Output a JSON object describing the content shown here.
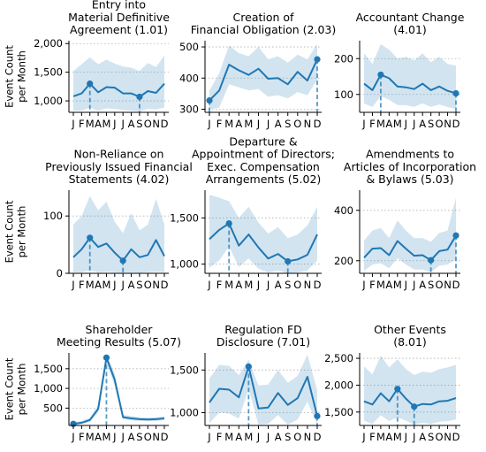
{
  "chart_data": {
    "type": "line",
    "y_axis_label": [
      "Event Count",
      "per Month"
    ],
    "x_tick_labels": [
      "J",
      "F",
      "M",
      "A",
      "M",
      "J",
      "J",
      "A",
      "S",
      "O",
      "N",
      "D"
    ],
    "line_color": "#1f77b4",
    "band_color": "#1f77b4",
    "panels": [
      {
        "title": [
          "Entry into",
          "Material Definitive",
          "Agreement (1.01)"
        ],
        "ylim": [
          800,
          2050
        ],
        "yticks": [
          1000,
          1500,
          2000
        ],
        "ytick_labels": [
          "1,000",
          "1,500",
          "2,000"
        ],
        "values": [
          1080,
          1130,
          1300,
          1150,
          1240,
          1230,
          1130,
          1130,
          1070,
          1170,
          1140,
          1300
        ],
        "band_upper": [
          1520,
          1640,
          1760,
          1640,
          1720,
          1650,
          1600,
          1580,
          1520,
          1660,
          1590,
          1790
        ],
        "band_lower": [
          830,
          830,
          880,
          830,
          870,
          860,
          840,
          830,
          820,
          860,
          850,
          880
        ],
        "highlight_max": 2,
        "highlight_min": 8
      },
      {
        "title": [
          "Creation of",
          "Financial Obligation (2.03)"
        ],
        "ylim": [
          290,
          520
        ],
        "yticks": [
          300,
          400,
          500
        ],
        "ytick_labels": [
          "300",
          "400",
          "500"
        ],
        "values": [
          328,
          360,
          443,
          425,
          410,
          430,
          398,
          400,
          380,
          420,
          392,
          460
        ],
        "band_upper": [
          360,
          415,
          505,
          480,
          470,
          500,
          460,
          470,
          450,
          475,
          460,
          510
        ],
        "band_lower": [
          300,
          305,
          380,
          370,
          360,
          365,
          340,
          345,
          335,
          355,
          345,
          395
        ],
        "highlight_max": 11,
        "highlight_min": 0
      },
      {
        "title": [
          "Accountant Change",
          "(4.01)"
        ],
        "ylim": [
          50,
          250
        ],
        "yticks": [
          100,
          200
        ],
        "ytick_labels": [
          "100",
          "200"
        ],
        "values": [
          130,
          112,
          155,
          145,
          122,
          120,
          115,
          130,
          112,
          122,
          110,
          103
        ],
        "band_upper": [
          215,
          185,
          240,
          225,
          200,
          205,
          195,
          215,
          190,
          205,
          185,
          180
        ],
        "band_lower": [
          75,
          65,
          95,
          85,
          70,
          70,
          65,
          75,
          65,
          72,
          65,
          60
        ],
        "highlight_max": 2,
        "highlight_min": 11
      },
      {
        "title": [
          "Non-Reliance on",
          "Previously Issued Financial",
          "Statements (4.02)"
        ],
        "ylim": [
          0,
          145
        ],
        "yticks": [
          0,
          100
        ],
        "ytick_labels": [
          "0",
          "100"
        ],
        "values": [
          28,
          42,
          62,
          46,
          52,
          36,
          22,
          42,
          28,
          32,
          58,
          30
        ],
        "band_upper": [
          85,
          100,
          135,
          110,
          125,
          90,
          70,
          105,
          75,
          85,
          130,
          85
        ],
        "band_lower": [
          2,
          2,
          5,
          2,
          3,
          2,
          1,
          2,
          1,
          2,
          3,
          2
        ],
        "highlight_max": 2,
        "highlight_min": 6
      },
      {
        "title": [
          "Departure &",
          "Appointment of Directors;",
          "Exec. Compensation",
          "Arrangements (5.02)"
        ],
        "ylim": [
          900,
          1800
        ],
        "yticks": [
          1000,
          1500
        ],
        "ytick_labels": [
          "1,000",
          "1,500"
        ],
        "values": [
          1270,
          1370,
          1440,
          1200,
          1320,
          1180,
          1060,
          1110,
          1030,
          1050,
          1100,
          1320
        ],
        "band_upper": [
          1750,
          1720,
          1680,
          1500,
          1620,
          1450,
          1330,
          1400,
          1280,
          1320,
          1420,
          1620
        ],
        "band_lower": [
          960,
          1040,
          1190,
          970,
          1060,
          950,
          910,
          930,
          900,
          910,
          930,
          1040
        ],
        "highlight_max": 2,
        "highlight_min": 8
      },
      {
        "title": [
          "Amendments to",
          "Articles of Incorporation",
          "& Bylaws (5.03)"
        ],
        "ylim": [
          150,
          480
        ],
        "yticks": [
          200,
          400
        ],
        "ytick_labels": [
          "200",
          "400"
        ],
        "values": [
          212,
          248,
          250,
          222,
          278,
          248,
          220,
          222,
          202,
          238,
          244,
          300
        ],
        "band_upper": [
          280,
          320,
          330,
          290,
          360,
          320,
          290,
          290,
          275,
          310,
          320,
          450
        ],
        "band_lower": [
          160,
          185,
          190,
          170,
          210,
          185,
          165,
          165,
          155,
          180,
          185,
          205
        ],
        "highlight_max": 11,
        "highlight_min": 8
      },
      {
        "title": [
          "Shareholder",
          "Meeting Results (5.07)"
        ],
        "ylim": [
          60,
          1900
        ],
        "yticks": [
          500,
          1000,
          1500
        ],
        "ytick_labels": [
          "500",
          "1,000",
          "1,500"
        ],
        "values": [
          100,
          130,
          200,
          480,
          1780,
          1220,
          270,
          240,
          220,
          210,
          220,
          240
        ],
        "band_upper": [
          140,
          175,
          260,
          580,
          1860,
          1380,
          330,
          300,
          270,
          260,
          270,
          290
        ],
        "band_lower": [
          70,
          95,
          150,
          390,
          1650,
          1060,
          220,
          190,
          175,
          165,
          175,
          195
        ],
        "highlight_max": 4,
        "highlight_min": 0
      },
      {
        "title": [
          "Regulation FD",
          "Disclosure (7.01)"
        ],
        "ylim": [
          850,
          1700
        ],
        "yticks": [
          1000,
          1500
        ],
        "ytick_labels": [
          "1,000",
          "1,500"
        ],
        "values": [
          1120,
          1280,
          1270,
          1180,
          1540,
          1050,
          1060,
          1230,
          1090,
          1170,
          1420,
          960
        ],
        "band_upper": [
          1400,
          1560,
          1550,
          1440,
          1620,
          1320,
          1330,
          1500,
          1350,
          1430,
          1680,
          1260
        ],
        "band_lower": [
          880,
          1000,
          990,
          930,
          1280,
          860,
          870,
          970,
          860,
          920,
          1130,
          860
        ],
        "highlight_max": 4,
        "highlight_min": 11
      },
      {
        "title": [
          "Other Events",
          "(8.01)"
        ],
        "ylim": [
          1250,
          2600
        ],
        "yticks": [
          1500,
          2000,
          2500
        ],
        "ytick_labels": [
          "1,500",
          "2,000",
          "2,500"
        ],
        "values": [
          1700,
          1640,
          1850,
          1700,
          1930,
          1750,
          1600,
          1650,
          1640,
          1700,
          1710,
          1760
        ],
        "band_upper": [
          2350,
          2200,
          2550,
          2330,
          2480,
          2300,
          2190,
          2250,
          2230,
          2300,
          2330,
          2380
        ],
        "band_lower": [
          1340,
          1280,
          1440,
          1330,
          1400,
          1340,
          1270,
          1300,
          1280,
          1320,
          1330,
          1360
        ],
        "highlight_max": 4,
        "highlight_min": 6
      }
    ]
  }
}
